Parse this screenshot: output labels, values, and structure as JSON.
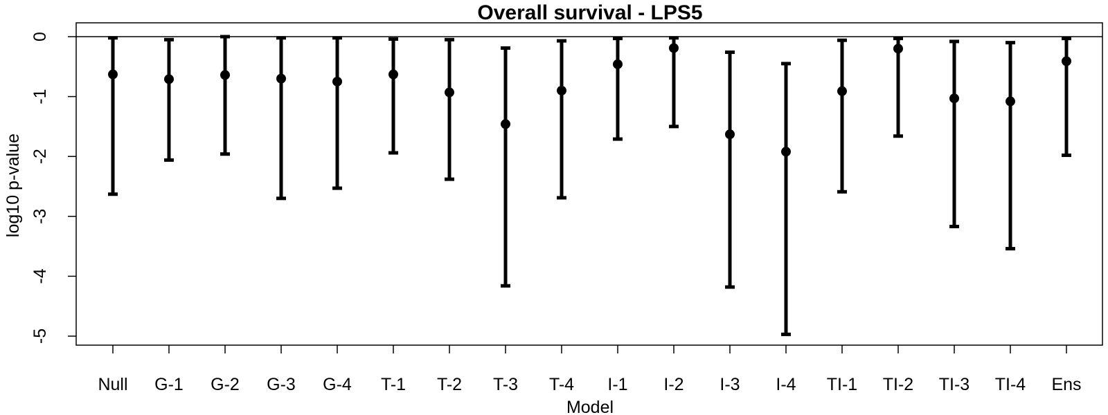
{
  "chart_data": {
    "type": "errorbar",
    "title": "Overall survival - LPS5",
    "xlabel": "Model",
    "ylabel": "log10 p-value",
    "ylim": [
      -5.15,
      0.05
    ],
    "yticks": [
      0,
      -1,
      -2,
      -3,
      -4,
      -5
    ],
    "ytick_labels": [
      "0",
      "-1",
      "-2",
      "-3",
      "-4",
      "-5"
    ],
    "reference_line": 0,
    "grid": false,
    "legend": "none",
    "categories": [
      "Null",
      "G-1",
      "G-2",
      "G-3",
      "G-4",
      "T-1",
      "T-2",
      "T-3",
      "T-4",
      "I-1",
      "I-2",
      "I-3",
      "I-4",
      "TI-1",
      "TI-2",
      "TI-3",
      "TI-4",
      "Ens"
    ],
    "values": [
      -0.63,
      -0.71,
      -0.64,
      -0.7,
      -0.75,
      -0.63,
      -0.93,
      -1.46,
      -0.9,
      -0.46,
      -0.19,
      -1.63,
      -1.92,
      -0.91,
      -0.2,
      -1.03,
      -1.08,
      -0.41
    ],
    "upper": [
      -0.02,
      -0.05,
      0.0,
      -0.02,
      -0.02,
      -0.04,
      -0.05,
      -0.19,
      -0.07,
      -0.03,
      -0.02,
      -0.26,
      -0.45,
      -0.06,
      -0.03,
      -0.08,
      -0.1,
      -0.03
    ],
    "lower": [
      -2.63,
      -2.06,
      -1.96,
      -2.7,
      -2.53,
      -1.94,
      -2.38,
      -4.16,
      -2.69,
      -1.71,
      -1.5,
      -4.18,
      -4.97,
      -2.59,
      -1.66,
      -3.17,
      -3.54,
      -1.98
    ],
    "colors": {
      "marks": "#000000",
      "background": "#ffffff"
    }
  }
}
